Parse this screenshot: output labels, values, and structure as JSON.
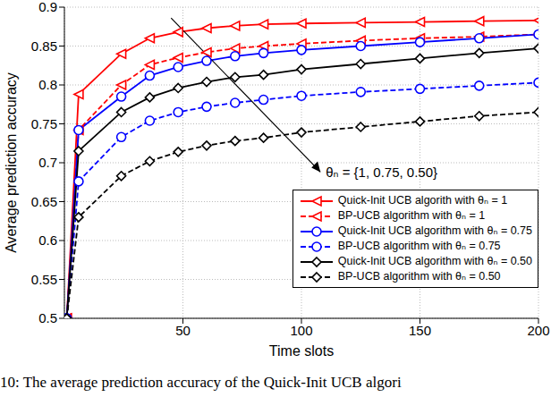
{
  "chart_data": {
    "type": "line",
    "x_label": "Time slots",
    "y_label": "Average prediction accuracy",
    "x": [
      1,
      6,
      24,
      36,
      48,
      60,
      72,
      84,
      100,
      125,
      150,
      175,
      200
    ],
    "xlim": [
      0,
      200
    ],
    "xticks": [
      50,
      100,
      150,
      200
    ],
    "ylim": [
      0.5,
      0.9
    ],
    "yticks": [
      0.5,
      0.55,
      0.6,
      0.65,
      0.7,
      0.75,
      0.8,
      0.85,
      0.9
    ],
    "grid": true,
    "legend": "lower right",
    "annotations": [
      "θₙ = {1, 0.75, 0.50}"
    ],
    "caption": "10: The average prediction accuracy of the Quick-Init UCB algori",
    "series": [
      {
        "name": "Quick-Init UCB algorith with θₙ = 1",
        "color": "#ff0000",
        "marker": "triangle-left",
        "line_style": "solid",
        "values": [
          0.5,
          0.788,
          0.84,
          0.86,
          0.868,
          0.873,
          0.876,
          0.878,
          0.879,
          0.88,
          0.881,
          0.882,
          0.883
        ]
      },
      {
        "name": "BP-UCB algorithm with θₙ = 1",
        "color": "#ff0000",
        "marker": "triangle-left",
        "line_style": "dashed",
        "values": [
          0.5,
          0.742,
          0.8,
          0.826,
          0.835,
          0.842,
          0.847,
          0.85,
          0.853,
          0.857,
          0.86,
          0.862,
          0.865
        ]
      },
      {
        "name": "Quick-Init UCB algorithm with θₙ = 0.75",
        "color": "#0000ff",
        "marker": "circle",
        "line_style": "solid",
        "values": [
          0.5,
          0.742,
          0.785,
          0.812,
          0.823,
          0.831,
          0.837,
          0.841,
          0.845,
          0.85,
          0.855,
          0.86,
          0.865
        ]
      },
      {
        "name": "BP-UCB algorithm with θₙ = 0.75",
        "color": "#0000ff",
        "marker": "circle",
        "line_style": "dashed",
        "values": [
          0.5,
          0.676,
          0.733,
          0.754,
          0.765,
          0.772,
          0.777,
          0.781,
          0.786,
          0.791,
          0.795,
          0.799,
          0.803
        ]
      },
      {
        "name": "Quick-Init UCB algorithm with θₙ = 0.50",
        "color": "#000000",
        "marker": "diamond",
        "line_style": "solid",
        "values": [
          0.5,
          0.715,
          0.765,
          0.784,
          0.796,
          0.804,
          0.81,
          0.813,
          0.82,
          0.827,
          0.834,
          0.841,
          0.847
        ]
      },
      {
        "name": "BP-UCB algorithm with θₙ = 0.50",
        "color": "#000000",
        "marker": "diamond",
        "line_style": "dashed",
        "values": [
          0.5,
          0.63,
          0.683,
          0.702,
          0.714,
          0.722,
          0.728,
          0.732,
          0.739,
          0.746,
          0.753,
          0.76,
          0.765
        ]
      }
    ]
  }
}
